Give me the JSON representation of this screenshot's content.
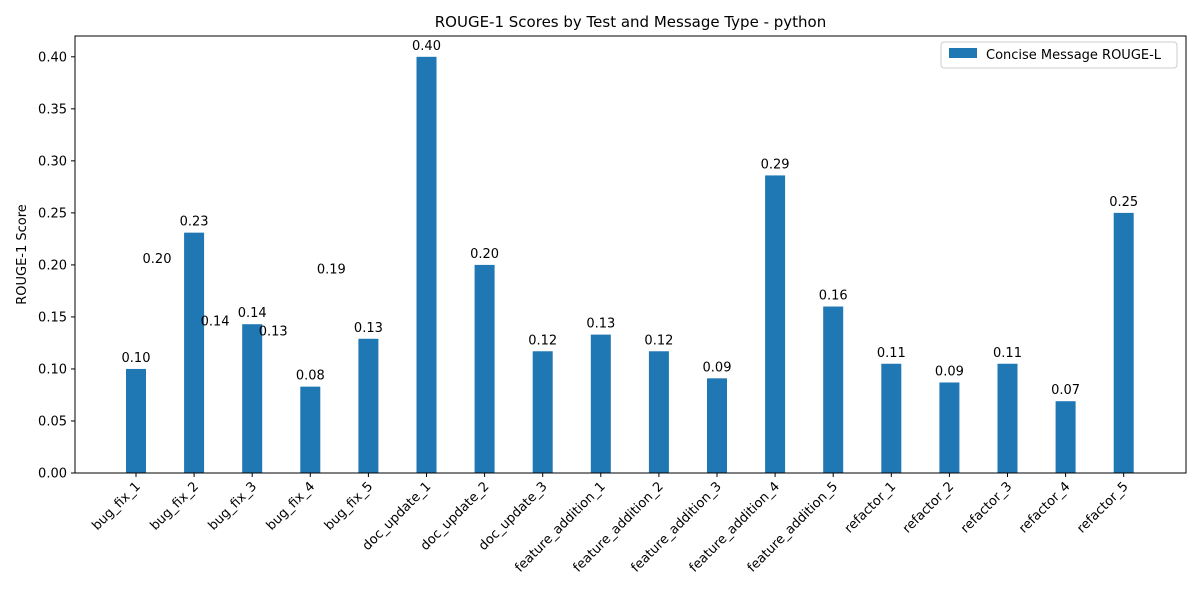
{
  "chart_data": {
    "type": "bar",
    "title": "ROUGE-1 Scores by Test and Message Type - python",
    "xlabel": "",
    "ylabel": "ROUGE-1 Score",
    "ylim": [
      0,
      0.42
    ],
    "yticks": [
      0.0,
      0.05,
      0.1,
      0.15,
      0.2,
      0.25,
      0.3,
      0.35,
      0.4
    ],
    "ytick_labels": [
      "0.00",
      "0.05",
      "0.10",
      "0.15",
      "0.20",
      "0.25",
      "0.30",
      "0.35",
      "0.40"
    ],
    "grid": false,
    "legend_position": "top-right",
    "categories": [
      "bug_fix_1",
      "bug_fix_2",
      "bug_fix_3",
      "bug_fix_4",
      "bug_fix_5",
      "doc_update_1",
      "doc_update_2",
      "doc_update_3",
      "feature_addition_1",
      "feature_addition_2",
      "feature_addition_3",
      "feature_addition_4",
      "feature_addition_5",
      "refactor_1",
      "refactor_2",
      "refactor_3",
      "refactor_4",
      "refactor_5"
    ],
    "series": [
      {
        "name": "Concise Message ROUGE-L",
        "color": "#1f77b4",
        "values": [
          0.1,
          0.231,
          0.143,
          0.083,
          0.129,
          0.4,
          0.2,
          0.117,
          0.133,
          0.117,
          0.091,
          0.286,
          0.16,
          0.105,
          0.087,
          0.105,
          0.069,
          0.25
        ],
        "labels": [
          "0.10",
          "0.23",
          "0.14",
          "0.08",
          "0.13",
          "0.40",
          "0.20",
          "0.12",
          "0.13",
          "0.12",
          "0.09",
          "0.29",
          "0.16",
          "0.11",
          "0.09",
          "0.11",
          "0.07",
          "0.25"
        ]
      }
    ],
    "stray_labels": [
      {
        "category_index": 0,
        "value": 0.2,
        "text": "0.20"
      },
      {
        "category_index": 1,
        "value": 0.14,
        "text": "0.14"
      },
      {
        "category_index": 2,
        "value": 0.13,
        "text": "0.13"
      },
      {
        "category_index": 3,
        "value": 0.19,
        "text": "0.19"
      }
    ]
  }
}
